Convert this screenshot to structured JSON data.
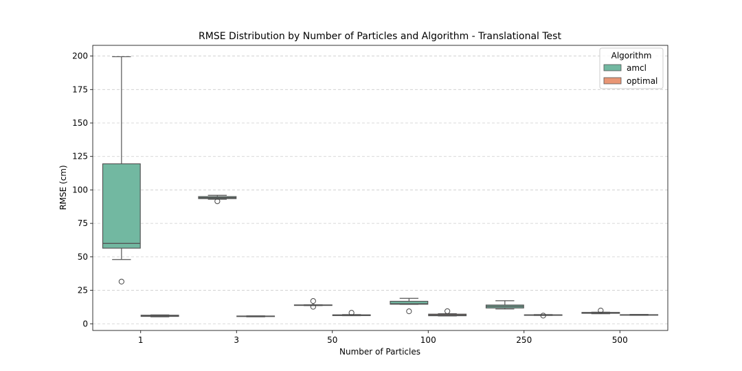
{
  "chart_data": {
    "type": "box",
    "title": "RMSE Distribution by Number of Particles and Algorithm - Translational Test",
    "xlabel": "Number of Particles",
    "ylabel": "RMSE (cm)",
    "categories": [
      "1",
      "3",
      "50",
      "100",
      "250",
      "500"
    ],
    "ylim": [
      -5,
      208
    ],
    "yticks": [
      0,
      25,
      50,
      75,
      100,
      125,
      150,
      175,
      200
    ],
    "grid": "y-dashed",
    "legend": {
      "title": "Algorithm",
      "placement": "top-right"
    },
    "series": [
      {
        "name": "amcl",
        "color": "#72b8a1",
        "boxes": [
          {
            "category": "1",
            "whislo": 48,
            "q1": 56.5,
            "med": 60,
            "q3": 119.5,
            "whishi": 199.5,
            "fliers": [
              31.5
            ]
          },
          {
            "category": "3",
            "whislo": 93,
            "q1": 93.5,
            "med": 94.2,
            "q3": 95,
            "whishi": 96,
            "fliers": [
              91.5
            ]
          },
          {
            "category": "50",
            "whislo": 13.6,
            "q1": 13.7,
            "med": 13.9,
            "q3": 14.1,
            "whishi": 14.2,
            "fliers": [
              17,
              12.7
            ]
          },
          {
            "category": "100",
            "whislo": 14.5,
            "q1": 14.6,
            "med": 15,
            "q3": 16.8,
            "whishi": 19,
            "fliers": [
              9.3
            ]
          },
          {
            "category": "250",
            "whislo": 11,
            "q1": 11.8,
            "med": 13,
            "q3": 14,
            "whishi": 17.2,
            "fliers": []
          },
          {
            "category": "500",
            "whislo": 7.5,
            "q1": 7.8,
            "med": 8.1,
            "q3": 8.5,
            "whishi": 8.7,
            "fliers": [
              9.9
            ]
          }
        ]
      },
      {
        "name": "optimal",
        "color": "#e99675",
        "boxes": [
          {
            "category": "1",
            "whislo": 5.2,
            "q1": 5.5,
            "med": 6,
            "q3": 6.4,
            "whishi": 6.6,
            "fliers": []
          },
          {
            "category": "3",
            "whislo": 5.2,
            "q1": 5.4,
            "med": 5.6,
            "q3": 5.8,
            "whishi": 5.9,
            "fliers": []
          },
          {
            "category": "50",
            "whislo": 6,
            "q1": 6.1,
            "med": 6.4,
            "q3": 6.7,
            "whishi": 6.9,
            "fliers": [
              8.2
            ]
          },
          {
            "category": "100",
            "whislo": 5.8,
            "q1": 6,
            "med": 6.6,
            "q3": 7.2,
            "whishi": 7.5,
            "fliers": [
              9.4
            ]
          },
          {
            "category": "250",
            "whislo": 6.2,
            "q1": 6.3,
            "med": 6.5,
            "q3": 6.7,
            "whishi": 6.9,
            "fliers": [
              6.1
            ]
          },
          {
            "category": "500",
            "whislo": 6.3,
            "q1": 6.4,
            "med": 6.6,
            "q3": 6.8,
            "whishi": 7,
            "fliers": []
          }
        ]
      }
    ]
  }
}
